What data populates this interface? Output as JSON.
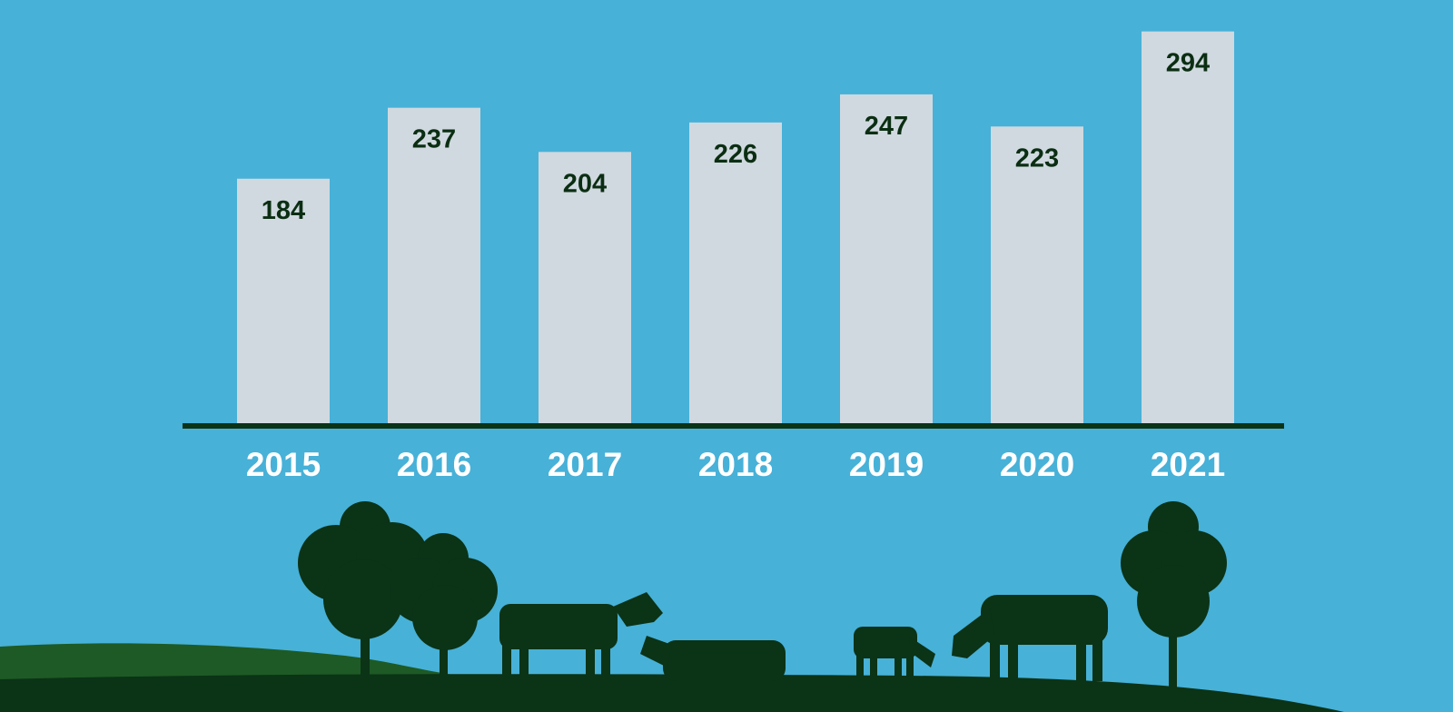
{
  "chart_data": {
    "type": "bar",
    "categories": [
      "2015",
      "2016",
      "2017",
      "2018",
      "2019",
      "2020",
      "2021"
    ],
    "values": [
      184,
      237,
      204,
      226,
      247,
      223,
      294
    ],
    "color": "#d0d9df"
  }
}
